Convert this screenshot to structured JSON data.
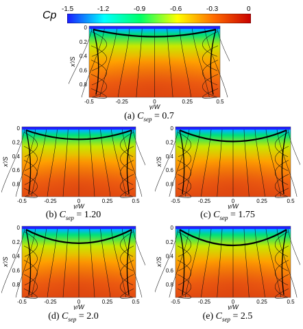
{
  "colorbar": {
    "title": "Cp",
    "ticks": [
      "-1.5",
      "-1.2",
      "-0.9",
      "-0.6",
      "-0.3",
      "0"
    ],
    "colors": [
      "#1a1aff",
      "#00ffff",
      "#00ff66",
      "#ffff00",
      "#ff6a00",
      "#c80000"
    ]
  },
  "axes": {
    "ylabel": "x'/S",
    "xlabel": "y/W",
    "y_ticks": [
      "0",
      "0.2",
      "0.4",
      "0.6",
      "0.8"
    ],
    "x_ticks": [
      "-0.5",
      "-0.25",
      "0",
      "0.25",
      "0.5"
    ]
  },
  "panels": [
    {
      "id": "a",
      "prefix": "(a) ",
      "var": "C",
      "sub": "sep",
      "value": " = 0.7"
    },
    {
      "id": "b",
      "prefix": "(b) ",
      "var": "C",
      "sub": "sep",
      "value": " = 1.20"
    },
    {
      "id": "c",
      "prefix": "(c) ",
      "var": "C",
      "sub": "sep",
      "value": " = 1.75"
    },
    {
      "id": "d",
      "prefix": "(d) ",
      "var": "C",
      "sub": "sep",
      "value": " = 2.0"
    },
    {
      "id": "e",
      "prefix": "(e) ",
      "var": "C",
      "sub": "sep",
      "value": " = 2.5"
    }
  ]
}
